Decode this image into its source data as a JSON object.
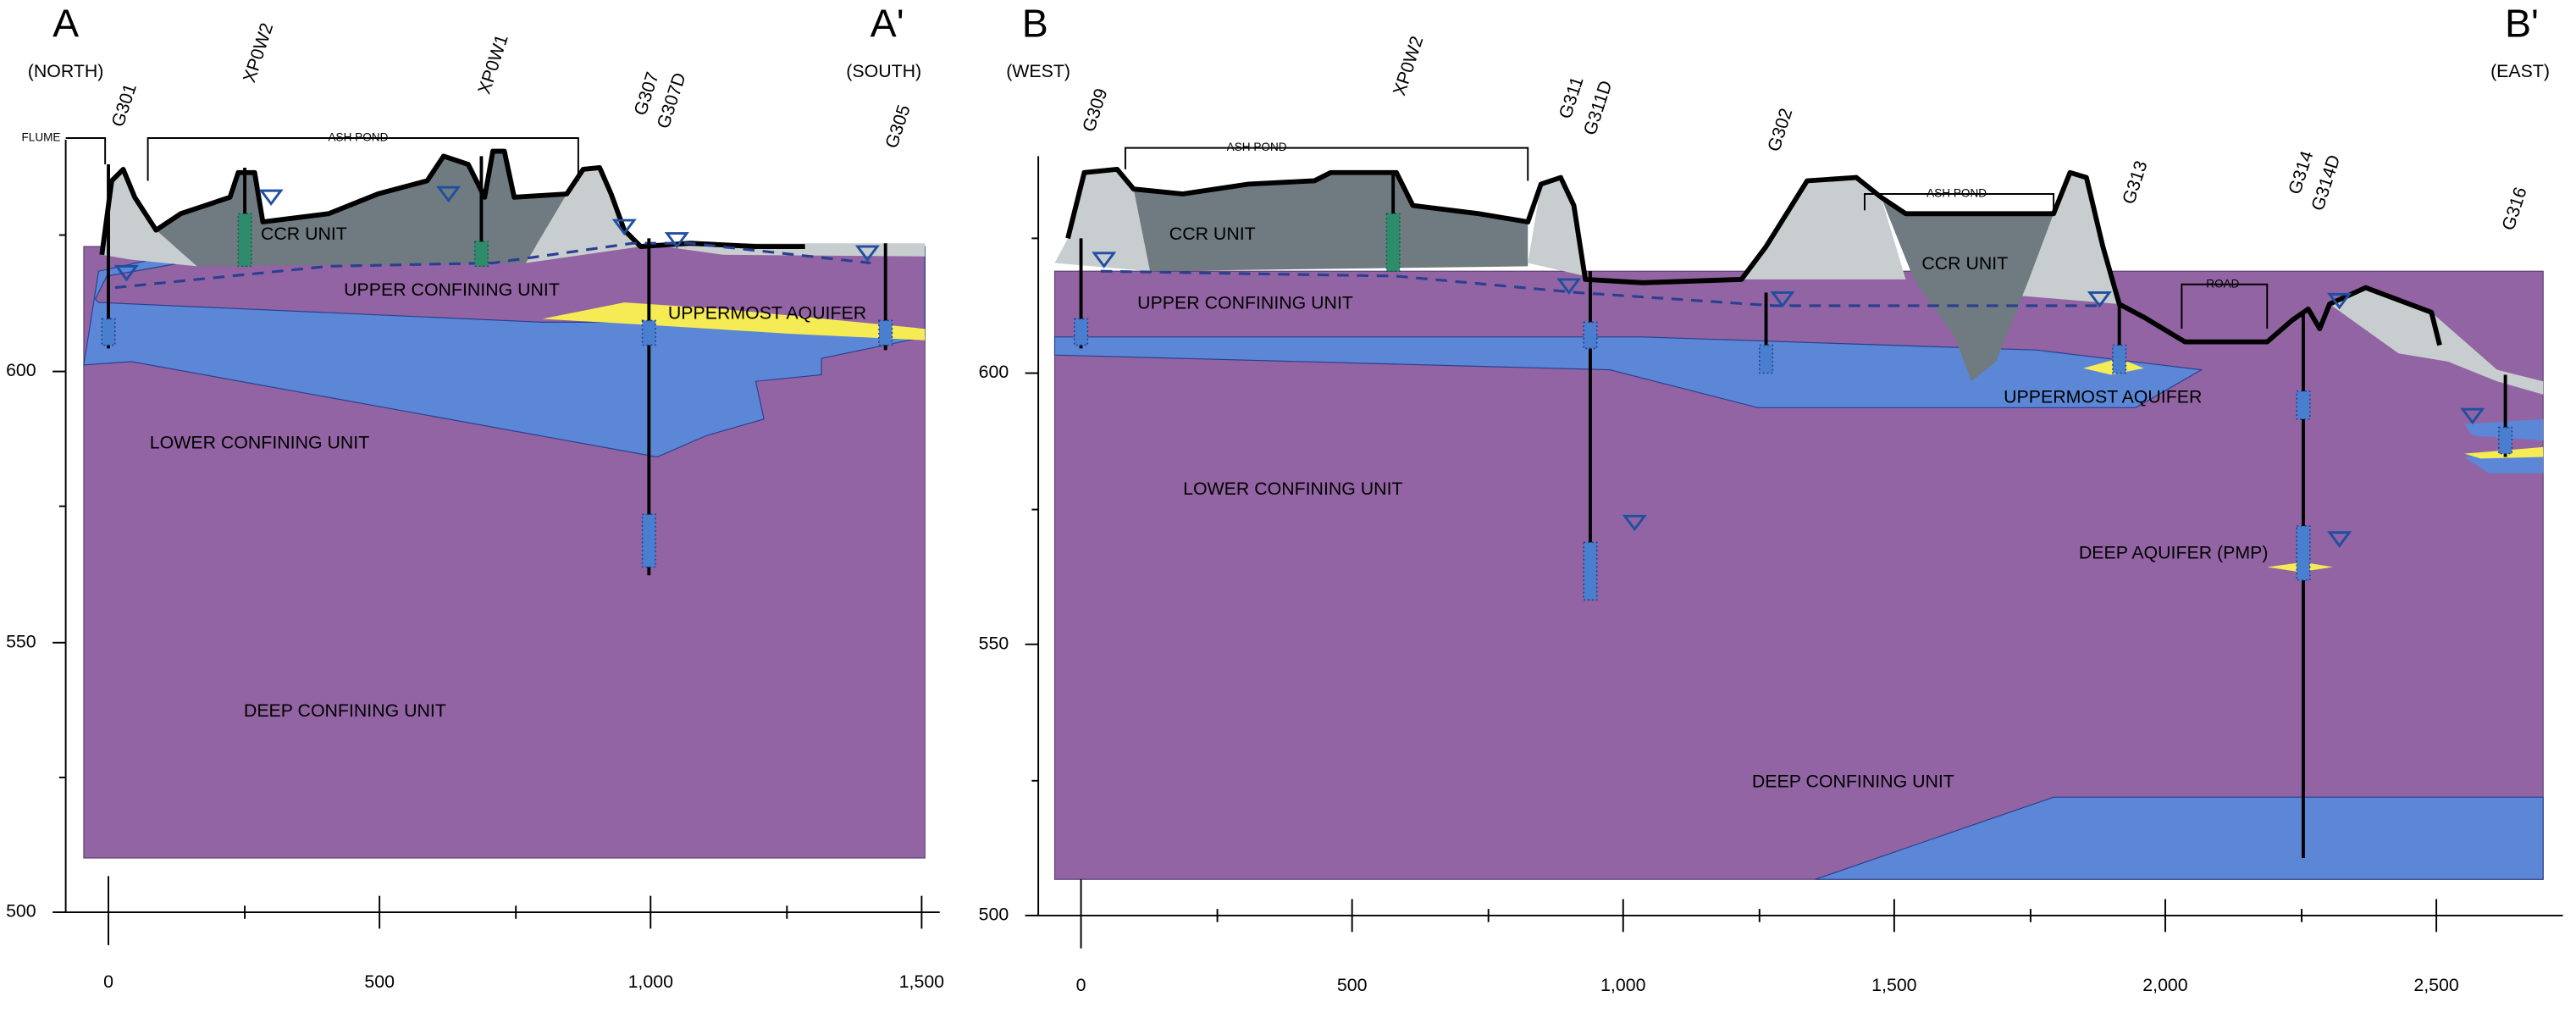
{
  "panels": [
    {
      "start": {
        "label": "A",
        "direction": "(NORTH)"
      },
      "end": {
        "label": "A'",
        "direction": "(SOUTH)"
      },
      "wells": [
        "G301",
        "XP0W2",
        "XP0W1",
        "G307",
        "G307D",
        "G305"
      ],
      "features": [
        "FLUME",
        "ASH POND"
      ],
      "units": [
        "CCR UNIT",
        "UPPER CONFINING UNIT",
        "UPPERMOST AQUIFER",
        "LOWER CONFINING UNIT",
        "DEEP CONFINING UNIT"
      ],
      "y_axis": [
        "600",
        "550",
        "500"
      ],
      "x_axis": [
        "0",
        "500",
        "1,000",
        "1,500"
      ]
    },
    {
      "start": {
        "label": "B",
        "direction": "(WEST)"
      },
      "end": {
        "label": "B'",
        "direction": "(EAST)"
      },
      "wells": [
        "G309",
        "XP0W2",
        "G311",
        "G311D",
        "G302",
        "G313",
        "G314",
        "G314D",
        "G316"
      ],
      "features": [
        "ASH POND",
        "ASH POND",
        "ROAD"
      ],
      "units": [
        "CCR UNIT",
        "CCR UNIT",
        "UPPER CONFINING UNIT",
        "UPPERMOST AQUIFER",
        "LOWER CONFINING UNIT",
        "DEEP AQUIFER (PMP)",
        "DEEP CONFINING UNIT"
      ],
      "y_axis": [
        "600",
        "550",
        "500"
      ],
      "x_axis": [
        "0",
        "500",
        "1,000",
        "1,500",
        "2,000",
        "2,500"
      ]
    }
  ]
}
